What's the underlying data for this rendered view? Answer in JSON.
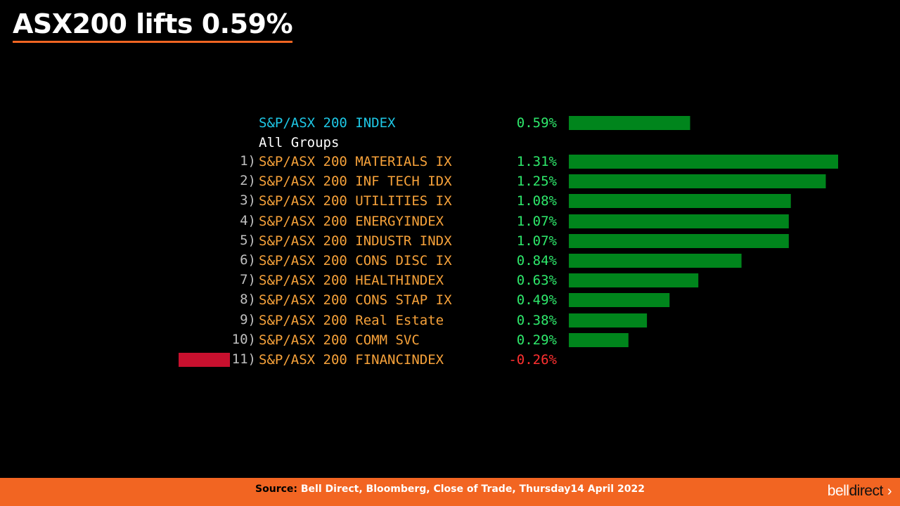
{
  "title": "ASX200 lifts 0.59%",
  "colors": {
    "accent": "#f26522",
    "positive": "#00851c",
    "negative": "#c8102e",
    "index_label": "#1ec8e6",
    "row_label": "#f7a23a",
    "positive_text": "#2ee86b",
    "negative_text": "#ff3030",
    "group_label": "#ffffff"
  },
  "chart_data": {
    "type": "bar",
    "orientation": "horizontal",
    "index": {
      "label": "S&P/ASX 200 INDEX",
      "value": 0.59,
      "value_text": "0.59%"
    },
    "group_label": "All Groups",
    "rows": [
      {
        "rank": "1)",
        "label": "S&P/ASX 200 MATERIALS IX",
        "value": 1.31,
        "value_text": "1.31%"
      },
      {
        "rank": "2)",
        "label": "S&P/ASX 200 INF TECH IDX",
        "value": 1.25,
        "value_text": "1.25%"
      },
      {
        "rank": "3)",
        "label": "S&P/ASX 200 UTILITIES IX",
        "value": 1.08,
        "value_text": "1.08%"
      },
      {
        "rank": "4)",
        "label": "S&P/ASX 200 ENERGYINDEX",
        "value": 1.07,
        "value_text": "1.07%"
      },
      {
        "rank": "5)",
        "label": "S&P/ASX 200 INDUSTR INDX",
        "value": 1.07,
        "value_text": "1.07%"
      },
      {
        "rank": "6)",
        "label": "S&P/ASX 200 CONS DISC IX",
        "value": 0.84,
        "value_text": "0.84%"
      },
      {
        "rank": "7)",
        "label": "S&P/ASX 200 HEALTHINDEX",
        "value": 0.63,
        "value_text": "0.63%"
      },
      {
        "rank": "8)",
        "label": "S&P/ASX 200 CONS STAP IX",
        "value": 0.49,
        "value_text": "0.49%"
      },
      {
        "rank": "9)",
        "label": "S&P/ASX 200 Real Estate",
        "value": 0.38,
        "value_text": "0.38%"
      },
      {
        "rank": "10)",
        "label": "S&P/ASX 200 COMM SVC",
        "value": 0.29,
        "value_text": "0.29%"
      },
      {
        "rank": "11)",
        "label": "S&P/ASX 200 FINANCINDEX",
        "value": -0.26,
        "value_text": "-0.26%"
      }
    ]
  },
  "footer": {
    "source_prefix": "Source:",
    "source_text": "Bell Direct, Bloomberg, Close of Trade, Thursday14 April 2022",
    "brand_part1": "bell",
    "brand_part2": "direct",
    "brand_chevron": "›"
  }
}
